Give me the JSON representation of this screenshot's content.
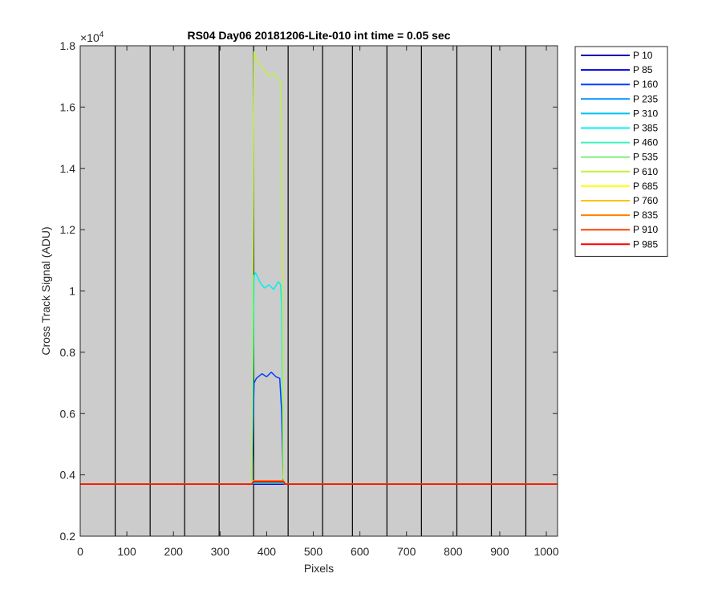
{
  "chart_data": {
    "type": "line",
    "title": "RS04 Day06 20181206-Lite-010 int time = 0.05 sec",
    "xlabel": "Pixels",
    "ylabel": "Cross Track Signal (ADU)",
    "y_exponent_label": "×10",
    "y_exponent_power": "4",
    "xlim": [
      0,
      1024
    ],
    "ylim": [
      2000,
      18000
    ],
    "x_ticks": [
      0,
      100,
      200,
      300,
      400,
      500,
      600,
      700,
      800,
      900,
      1000
    ],
    "x_tick_labels": [
      "0",
      "100",
      "200",
      "300",
      "400",
      "500",
      "600",
      "700",
      "800",
      "900",
      "1000"
    ],
    "y_ticks": [
      2000,
      4000,
      6000,
      8000,
      10000,
      12000,
      14000,
      16000,
      18000
    ],
    "y_tick_labels": [
      "0.2",
      "0.4",
      "0.6",
      "0.8",
      "1",
      "1.2",
      "1.4",
      "1.6",
      "1.8"
    ],
    "vertical_lines_x": [
      75,
      150,
      224,
      298,
      372,
      446,
      520,
      584,
      658,
      732,
      808,
      882,
      956
    ],
    "background_color": "#cccccc",
    "legend_position": "outside-right",
    "series": [
      {
        "name": "P 10",
        "color": "#0000a8",
        "x": [
          0,
          368,
          372,
          436,
          440,
          1024
        ],
        "y": [
          3700,
          3700,
          3700,
          3700,
          3700,
          3700
        ]
      },
      {
        "name": "P 85",
        "color": "#0000e0",
        "x": [
          0,
          368,
          372,
          436,
          440,
          1024
        ],
        "y": [
          3700,
          3700,
          3700,
          3700,
          3700,
          3700
        ]
      },
      {
        "name": "P 160",
        "color": "#0040ff",
        "x": [
          0,
          368,
          373,
          378,
          390,
          400,
          410,
          420,
          428,
          432,
          436,
          440,
          1024
        ],
        "y": [
          3700,
          3700,
          7000,
          7150,
          7300,
          7200,
          7350,
          7200,
          7150,
          6100,
          3800,
          3700,
          3700
        ]
      },
      {
        "name": "P 235",
        "color": "#0090ff",
        "x": [
          0,
          368,
          372,
          436,
          440,
          1024
        ],
        "y": [
          3700,
          3700,
          3720,
          3720,
          3700,
          3700
        ]
      },
      {
        "name": "P 310",
        "color": "#00c0f0",
        "x": [
          0,
          368,
          372,
          436,
          440,
          1024
        ],
        "y": [
          3700,
          3700,
          3730,
          3730,
          3700,
          3700
        ]
      },
      {
        "name": "P 385",
        "color": "#00f0f0",
        "x": [
          0,
          368,
          373,
          376,
          385,
          395,
          405,
          415,
          425,
          430,
          432,
          436,
          440,
          1024
        ],
        "y": [
          3700,
          3700,
          10500,
          10600,
          10300,
          10100,
          10200,
          10050,
          10300,
          10200,
          9500,
          3900,
          3700,
          3700
        ]
      },
      {
        "name": "P 460",
        "color": "#40f0c0",
        "x": [
          0,
          368,
          372,
          436,
          440,
          1024
        ],
        "y": [
          3700,
          3700,
          3760,
          3760,
          3700,
          3700
        ]
      },
      {
        "name": "P 535",
        "color": "#80f080",
        "x": [
          0,
          368,
          372,
          436,
          440,
          1024
        ],
        "y": [
          3700,
          3700,
          3780,
          3780,
          3700,
          3700
        ]
      },
      {
        "name": "P 610",
        "color": "#c0f040",
        "x": [
          0,
          368,
          373,
          376,
          385,
          395,
          405,
          415,
          425,
          430,
          432,
          436,
          440,
          1024
        ],
        "y": [
          3700,
          3700,
          17800,
          17600,
          17400,
          17200,
          17000,
          17100,
          16900,
          16800,
          15000,
          3900,
          3700,
          3700
        ]
      },
      {
        "name": "P 685",
        "color": "#ffff00",
        "x": [
          0,
          368,
          372,
          436,
          440,
          1024
        ],
        "y": [
          3700,
          3700,
          3790,
          3790,
          3700,
          3700
        ]
      },
      {
        "name": "P 760",
        "color": "#ffc000",
        "x": [
          0,
          368,
          372,
          436,
          440,
          1024
        ],
        "y": [
          3700,
          3700,
          3800,
          3800,
          3700,
          3700
        ]
      },
      {
        "name": "P 835",
        "color": "#ff8000",
        "x": [
          0,
          368,
          372,
          436,
          440,
          1024
        ],
        "y": [
          3700,
          3700,
          3810,
          3810,
          3700,
          3700
        ]
      },
      {
        "name": "P 910",
        "color": "#ff4000",
        "x": [
          0,
          368,
          372,
          436,
          440,
          1024
        ],
        "y": [
          3700,
          3700,
          3790,
          3790,
          3700,
          3700
        ]
      },
      {
        "name": "P 985",
        "color": "#ff0000",
        "x": [
          0,
          368,
          372,
          436,
          440,
          1024
        ],
        "y": [
          3700,
          3700,
          3770,
          3770,
          3700,
          3700
        ]
      }
    ]
  }
}
